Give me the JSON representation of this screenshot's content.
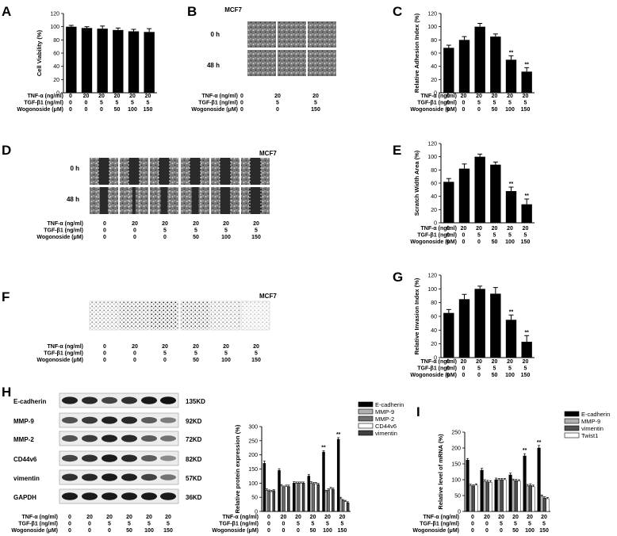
{
  "panels": {
    "A": {
      "label": "A"
    },
    "B": {
      "label": "B",
      "cell_line": "MCF7",
      "rows": [
        "0 h",
        "48 h"
      ]
    },
    "C": {
      "label": "C"
    },
    "D": {
      "label": "D",
      "cell_line": "MCF7",
      "rows": [
        "0 h",
        "48 h"
      ]
    },
    "E": {
      "label": "E"
    },
    "F": {
      "label": "F",
      "cell_line": "MCF7"
    },
    "G": {
      "label": "G"
    },
    "H": {
      "label": "H",
      "bands": [
        {
          "name": "E-cadherin",
          "kd": "135KD"
        },
        {
          "name": "MMP-9",
          "kd": "92KD"
        },
        {
          "name": "MMP-2",
          "kd": "72KD"
        },
        {
          "name": "CD44v6",
          "kd": "82KD"
        },
        {
          "name": "vimentin",
          "kd": "57KD"
        },
        {
          "name": "GAPDH",
          "kd": "36KD"
        }
      ]
    },
    "I": {
      "label": "I"
    }
  },
  "treatments": {
    "names": [
      "TNF-α (ng/ml)",
      "TGF-β1 (ng/ml)",
      "Wogonoside (μM)"
    ],
    "six": [
      [
        "0",
        "20",
        "20",
        "20",
        "20",
        "20"
      ],
      [
        "0",
        "0",
        "5",
        "5",
        "5",
        "5"
      ],
      [
        "0",
        "0",
        "0",
        "50",
        "100",
        "150"
      ]
    ],
    "three": [
      [
        "0",
        "20",
        "20"
      ],
      [
        "0",
        "5",
        "5"
      ],
      [
        "0",
        "0",
        "150"
      ]
    ]
  },
  "chart_data": [
    {
      "id": "A",
      "type": "bar",
      "ylabel": "Cell Viability (%)",
      "ylim": [
        0,
        120
      ],
      "yticks": [
        0,
        20,
        40,
        60,
        80,
        100,
        120
      ],
      "values": [
        100,
        98,
        97,
        95,
        93,
        92
      ],
      "errors": [
        2,
        2,
        4,
        3,
        3,
        5
      ],
      "sig": [
        "",
        "",
        "",
        "",
        "",
        ""
      ]
    },
    {
      "id": "C",
      "type": "bar",
      "ylabel": "Relative Adhesion Index (%)",
      "ylim": [
        0,
        120
      ],
      "yticks": [
        0,
        20,
        40,
        60,
        80,
        100,
        120
      ],
      "values": [
        68,
        80,
        100,
        85,
        50,
        32
      ],
      "errors": [
        4,
        5,
        5,
        4,
        6,
        6
      ],
      "sig": [
        "",
        "",
        "",
        "",
        "**",
        "**"
      ]
    },
    {
      "id": "E",
      "type": "bar",
      "ylabel": "Scratch Width Area (%)",
      "ylim": [
        0,
        120
      ],
      "yticks": [
        0,
        20,
        40,
        60,
        80,
        100,
        120
      ],
      "values": [
        62,
        82,
        100,
        88,
        48,
        28
      ],
      "errors": [
        5,
        7,
        4,
        4,
        6,
        8
      ],
      "sig": [
        "",
        "",
        "",
        "",
        "**",
        "**"
      ]
    },
    {
      "id": "G",
      "type": "bar",
      "ylabel": "Relative Invasion Index (%)",
      "ylim": [
        0,
        120
      ],
      "yticks": [
        0,
        20,
        40,
        60,
        80,
        100,
        120
      ],
      "values": [
        65,
        85,
        100,
        93,
        55,
        23
      ],
      "errors": [
        5,
        7,
        4,
        9,
        7,
        9
      ],
      "sig": [
        "",
        "",
        "",
        "",
        "**",
        "**"
      ]
    },
    {
      "id": "H",
      "type": "bar",
      "ylabel": "Relative protein expression (%)",
      "ylim": [
        0,
        300
      ],
      "yticks": [
        0,
        50,
        100,
        150,
        200,
        250,
        300
      ],
      "series": [
        {
          "name": "E-cadherin",
          "color": "#000000",
          "values": [
            170,
            145,
            100,
            125,
            210,
            255
          ],
          "errors": [
            8,
            6,
            5,
            6,
            5,
            6
          ]
        },
        {
          "name": "MMP-9",
          "color": "#b0b0b0",
          "values": [
            75,
            90,
            100,
            100,
            70,
            45
          ],
          "errors": [
            5,
            5,
            4,
            5,
            5,
            5
          ]
        },
        {
          "name": "MMP-2",
          "color": "#707070",
          "values": [
            72,
            85,
            100,
            98,
            75,
            38
          ],
          "errors": [
            4,
            5,
            4,
            4,
            5,
            4
          ]
        },
        {
          "name": "CD44v6",
          "color": "#ffffff",
          "values": [
            70,
            88,
            100,
            98,
            80,
            35
          ],
          "errors": [
            4,
            5,
            4,
            4,
            5,
            4
          ]
        },
        {
          "name": "vimentin",
          "color": "#404040",
          "values": [
            73,
            88,
            100,
            95,
            78,
            30
          ],
          "errors": [
            4,
            5,
            4,
            4,
            5,
            4
          ]
        }
      ],
      "sig": [
        "",
        "",
        "",
        "",
        "**",
        "**"
      ]
    },
    {
      "id": "I",
      "type": "bar",
      "ylabel": "Relative level of mRNA (%)",
      "ylim": [
        0,
        250
      ],
      "yticks": [
        0,
        50,
        100,
        150,
        200,
        250
      ],
      "series": [
        {
          "name": "E-cadherin",
          "color": "#000000",
          "values": [
            162,
            130,
            100,
            115,
            175,
            200
          ],
          "errors": [
            5,
            6,
            5,
            6,
            7,
            8
          ]
        },
        {
          "name": "MMP-9",
          "color": "#b0b0b0",
          "values": [
            82,
            95,
            100,
            98,
            80,
            48
          ],
          "errors": [
            4,
            5,
            4,
            4,
            5,
            4
          ]
        },
        {
          "name": "vimentin",
          "color": "#505050",
          "values": [
            80,
            93,
            100,
            97,
            82,
            42
          ],
          "errors": [
            4,
            5,
            4,
            4,
            5,
            4
          ]
        },
        {
          "name": "Twist1",
          "color": "#ffffff",
          "values": [
            83,
            92,
            100,
            96,
            78,
            40
          ],
          "errors": [
            4,
            5,
            4,
            4,
            5,
            4
          ]
        }
      ],
      "sig": [
        "",
        "",
        "",
        "",
        "**",
        "**"
      ]
    }
  ]
}
